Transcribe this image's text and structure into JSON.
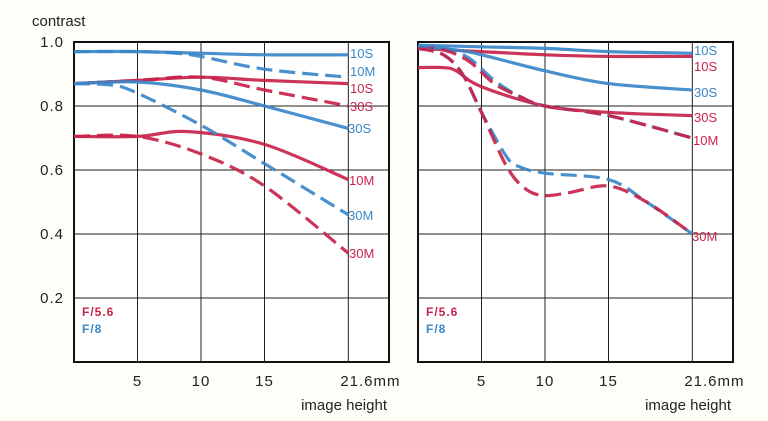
{
  "chart_data": [
    {
      "type": "line",
      "ylabel": "contrast",
      "xlabel": "image height",
      "xticks": [
        "5",
        "10",
        "15",
        "21.6mm"
      ],
      "xtick_values": [
        5,
        10,
        15,
        21.6
      ],
      "yticks": [
        "1.0",
        "0.8",
        "0.6",
        "0.4",
        "0.2"
      ],
      "ytick_values": [
        1.0,
        0.8,
        0.6,
        0.4,
        0.2
      ],
      "xlim": [
        0,
        24.8
      ],
      "ylim": [
        0,
        1.0
      ],
      "grid": true,
      "legend": [
        {
          "label": "F/5.6",
          "color": "#c8234a"
        },
        {
          "label": "F/8",
          "color": "#3a87c8"
        }
      ],
      "legend_position": "bottom-left",
      "series": [
        {
          "name": "F/8 10S",
          "label": "10S",
          "color": "#3a87c8",
          "dash": false,
          "x": [
            0,
            5,
            10,
            15,
            21.6
          ],
          "y": [
            0.97,
            0.97,
            0.965,
            0.96,
            0.96
          ]
        },
        {
          "name": "F/8 10M",
          "label": "10M",
          "color": "#3a87c8",
          "dash": true,
          "x": [
            0,
            5,
            8,
            10,
            15,
            21.6
          ],
          "y": [
            0.97,
            0.97,
            0.965,
            0.955,
            0.915,
            0.89
          ]
        },
        {
          "name": "F/5.6 10S",
          "label": "10S",
          "color": "#c8234a",
          "dash": false,
          "x": [
            0,
            5,
            10,
            15,
            21.6
          ],
          "y": [
            0.87,
            0.88,
            0.89,
            0.88,
            0.87
          ]
        },
        {
          "name": "F/5.6 30S",
          "label": "30S",
          "color": "#c8234a",
          "dash": true,
          "x": [
            0,
            5,
            10,
            15,
            21.6
          ],
          "y": [
            0.87,
            0.88,
            0.89,
            0.85,
            0.8
          ]
        },
        {
          "name": "F/8 30S",
          "label": "30S",
          "color": "#3a87c8",
          "dash": false,
          "x": [
            0,
            5,
            10,
            15,
            21.6
          ],
          "y": [
            0.87,
            0.875,
            0.85,
            0.8,
            0.73
          ]
        },
        {
          "name": "F/5.6 10M",
          "label": "10M",
          "color": "#c8234a",
          "dash": false,
          "x": [
            0,
            5,
            9,
            15,
            21.6
          ],
          "y": [
            0.705,
            0.705,
            0.72,
            0.68,
            0.57
          ]
        },
        {
          "name": "F/8 30M",
          "label": "30M",
          "color": "#3a87c8",
          "dash": true,
          "x": [
            0,
            3,
            5,
            10,
            15,
            21.6
          ],
          "y": [
            0.87,
            0.865,
            0.84,
            0.74,
            0.62,
            0.46
          ]
        },
        {
          "name": "F/5.6 30M",
          "label": "30M",
          "color": "#c8234a",
          "dash": true,
          "x": [
            0,
            5,
            10,
            15,
            21.6
          ],
          "y": [
            0.705,
            0.705,
            0.65,
            0.55,
            0.34
          ]
        }
      ]
    },
    {
      "type": "line",
      "xlabel": "image height",
      "xticks": [
        "5",
        "10",
        "15",
        "21.6mm"
      ],
      "xtick_values": [
        5,
        10,
        15,
        21.6
      ],
      "xlim": [
        0,
        24.8
      ],
      "ylim": [
        0,
        1.0
      ],
      "grid": true,
      "legend": [
        {
          "label": "F/5.6",
          "color": "#c8234a"
        },
        {
          "label": "F/8",
          "color": "#3a87c8"
        }
      ],
      "legend_position": "bottom-left",
      "series": [
        {
          "name": "F/8 10S",
          "label": "10S",
          "color": "#3a87c8",
          "dash": false,
          "x": [
            0,
            5,
            10,
            15,
            21.6
          ],
          "y": [
            0.99,
            0.985,
            0.98,
            0.97,
            0.965
          ]
        },
        {
          "name": "F/5.6 10S",
          "label": "10S",
          "color": "#c8234a",
          "dash": false,
          "x": [
            0,
            5,
            10,
            15,
            21.6
          ],
          "y": [
            0.98,
            0.97,
            0.96,
            0.955,
            0.955
          ]
        },
        {
          "name": "F/8 30S",
          "label": "30S",
          "color": "#3a87c8",
          "dash": false,
          "x": [
            0,
            3,
            5,
            10,
            15,
            21.6
          ],
          "y": [
            0.985,
            0.975,
            0.96,
            0.91,
            0.87,
            0.85
          ]
        },
        {
          "name": "F/5.6 30S",
          "label": "30S",
          "color": "#c8234a",
          "dash": false,
          "x": [
            0,
            2,
            3,
            5,
            10,
            15,
            21.6
          ],
          "y": [
            0.92,
            0.92,
            0.91,
            0.86,
            0.8,
            0.78,
            0.77
          ]
        },
        {
          "name": "F/8 10M",
          "label": "",
          "color": "#3a87c8",
          "dash": true,
          "x": [
            0,
            2,
            4,
            6,
            8,
            10,
            15,
            21.6
          ],
          "y": [
            0.985,
            0.98,
            0.95,
            0.88,
            0.83,
            0.8,
            0.77,
            0.7
          ]
        },
        {
          "name": "F/5.6 10M",
          "label": "10M",
          "color": "#c8234a",
          "dash": true,
          "x": [
            0,
            2,
            4,
            6,
            8,
            10,
            15,
            21.6
          ],
          "y": [
            0.98,
            0.975,
            0.94,
            0.87,
            0.83,
            0.8,
            0.77,
            0.7
          ]
        },
        {
          "name": "F/8 30M",
          "label": "",
          "color": "#3a87c8",
          "dash": true,
          "x": [
            0,
            2,
            3.5,
            5,
            7,
            8,
            10,
            15,
            18,
            21.6
          ],
          "y": [
            0.985,
            0.96,
            0.9,
            0.78,
            0.64,
            0.61,
            0.59,
            0.57,
            0.5,
            0.4
          ]
        },
        {
          "name": "F/5.6 30M",
          "label": "30M",
          "color": "#c8234a",
          "dash": true,
          "x": [
            0,
            2,
            3.5,
            5,
            7,
            8.5,
            10,
            12,
            15,
            18,
            21.6
          ],
          "y": [
            0.98,
            0.96,
            0.9,
            0.78,
            0.61,
            0.54,
            0.52,
            0.53,
            0.55,
            0.5,
            0.4
          ]
        }
      ]
    }
  ]
}
